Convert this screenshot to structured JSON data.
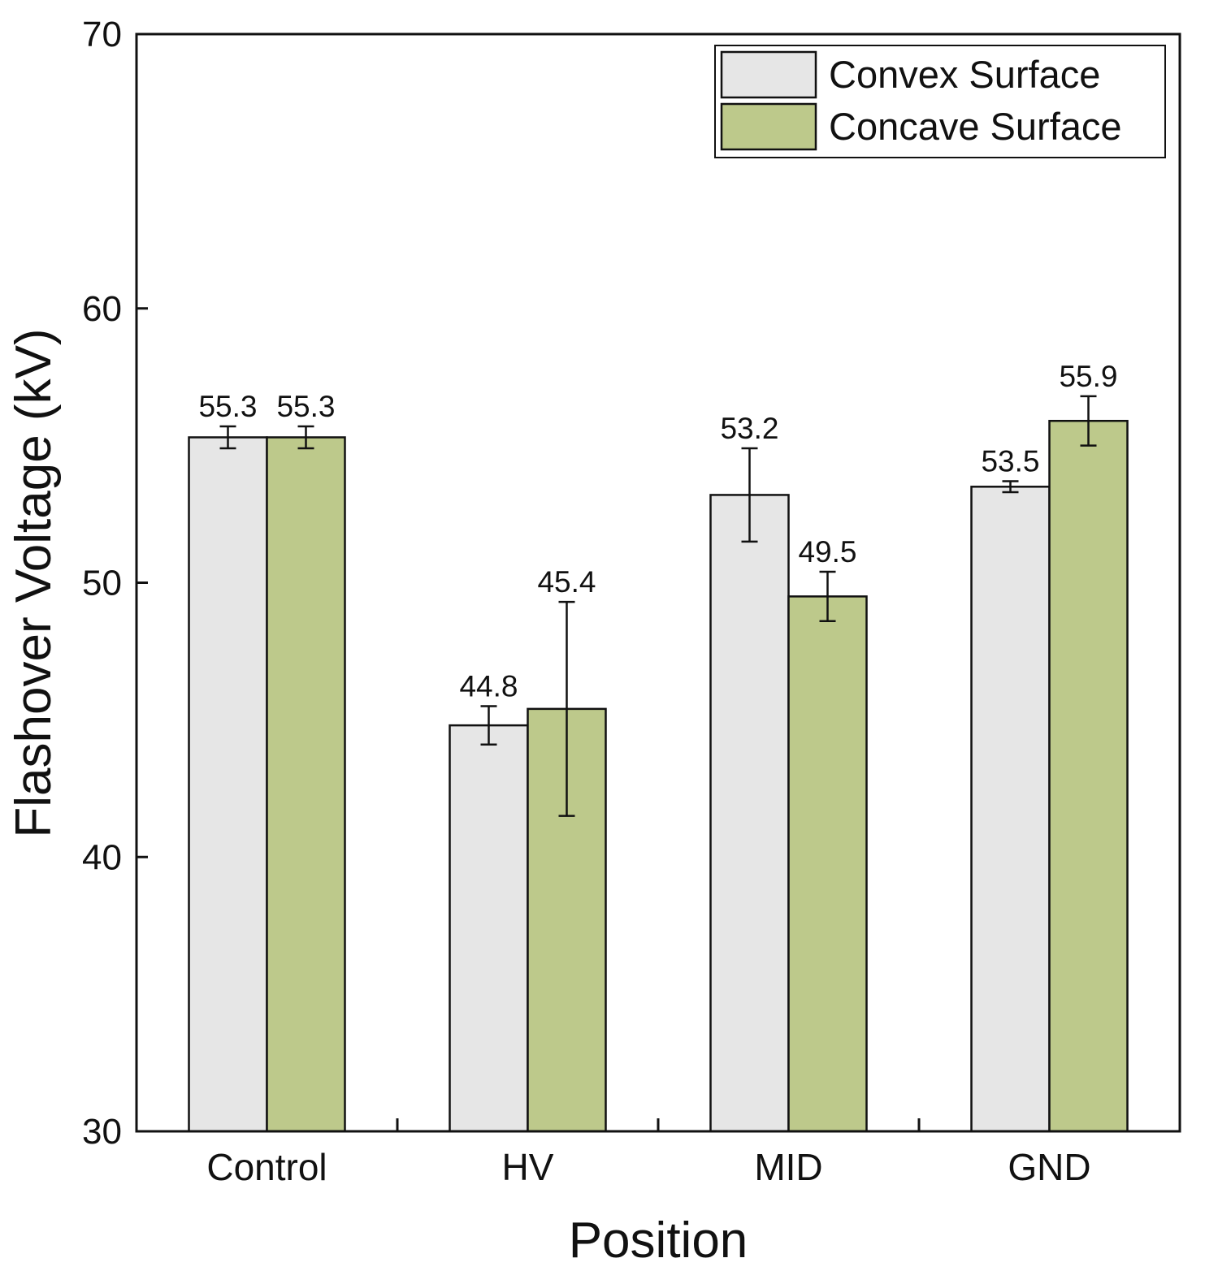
{
  "chart_data": {
    "type": "bar",
    "title": "",
    "xlabel": "Position",
    "ylabel": "Flashover Voltage (kV)",
    "ylim": [
      30,
      70
    ],
    "yticks": [
      30,
      40,
      50,
      60,
      70
    ],
    "ytick_labels": [
      "30",
      "40",
      "50",
      "60",
      "70"
    ],
    "categories": [
      "Control",
      "HV",
      "MID",
      "GND"
    ],
    "series": [
      {
        "name": "Convex Surface",
        "color": "#e6e6e6",
        "values": [
          55.3,
          44.8,
          53.2,
          53.5
        ],
        "errors": [
          0.4,
          0.7,
          1.7,
          0.2
        ],
        "labels": [
          "55.3",
          "44.8",
          "53.2",
          "53.5"
        ]
      },
      {
        "name": "Concave Surface",
        "color": "#bdc98b",
        "values": [
          55.3,
          45.4,
          49.5,
          55.9
        ],
        "errors": [
          0.4,
          3.9,
          0.9,
          0.9
        ],
        "labels": [
          "55.3",
          "45.4",
          "49.5",
          "55.9"
        ]
      }
    ],
    "legend_position": "top-right",
    "grid": false
  }
}
